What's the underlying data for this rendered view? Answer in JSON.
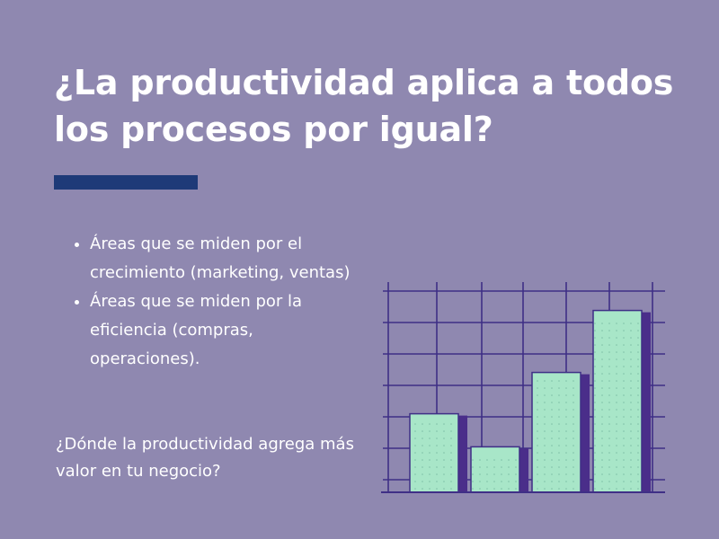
{
  "slide": {
    "title": "¿La productividad aplica a todos los procesos por igual?",
    "bullets": [
      "Áreas que se miden por el crecimiento (marketing, ventas)",
      "Áreas que se miden por la eficiencia (compras, operaciones)."
    ],
    "question": "¿Dónde la productividad agrega más valor en tu negocio?"
  },
  "colors": {
    "background": "#8f88b0",
    "accent_bar": "#1e3a78",
    "bar_fill": "#a8e6c8",
    "bar_shadow": "#4a2e8a",
    "grid": "#3f2f86"
  },
  "illustration": {
    "bar_levels": [
      0.38,
      0.22,
      0.58,
      0.88
    ]
  }
}
